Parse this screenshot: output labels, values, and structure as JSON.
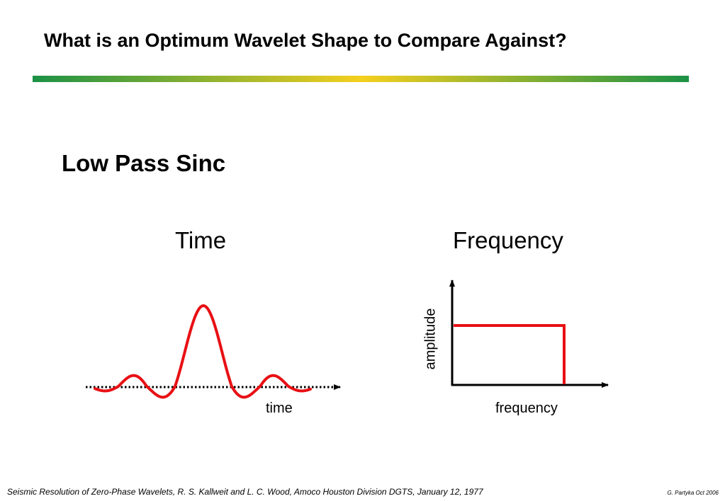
{
  "slide": {
    "title": "What is an Optimum Wavelet Shape to Compare Against?",
    "subtitle": "Low Pass Sinc"
  },
  "colors": {
    "title_bar_edges": "#1b9145",
    "title_bar_center": "#f5cf1e",
    "curve": "#e81014",
    "axis": "#000000"
  },
  "time_panel": {
    "heading": "Time",
    "axis_label": "time",
    "axis_style": "dotted-arrow",
    "curve": "sinc"
  },
  "frequency_panel": {
    "heading": "Frequency",
    "x_label": "frequency",
    "y_label": "amplitude",
    "curve": "boxcar"
  },
  "footer": {
    "citation": "Seismic Resolution of Zero-Phase Wavelets, R. S. Kallweit and L. C. Wood, Amoco Houston Division DGTS,  January 12, 1977",
    "credit": "G. Partyka Oct 2006"
  }
}
